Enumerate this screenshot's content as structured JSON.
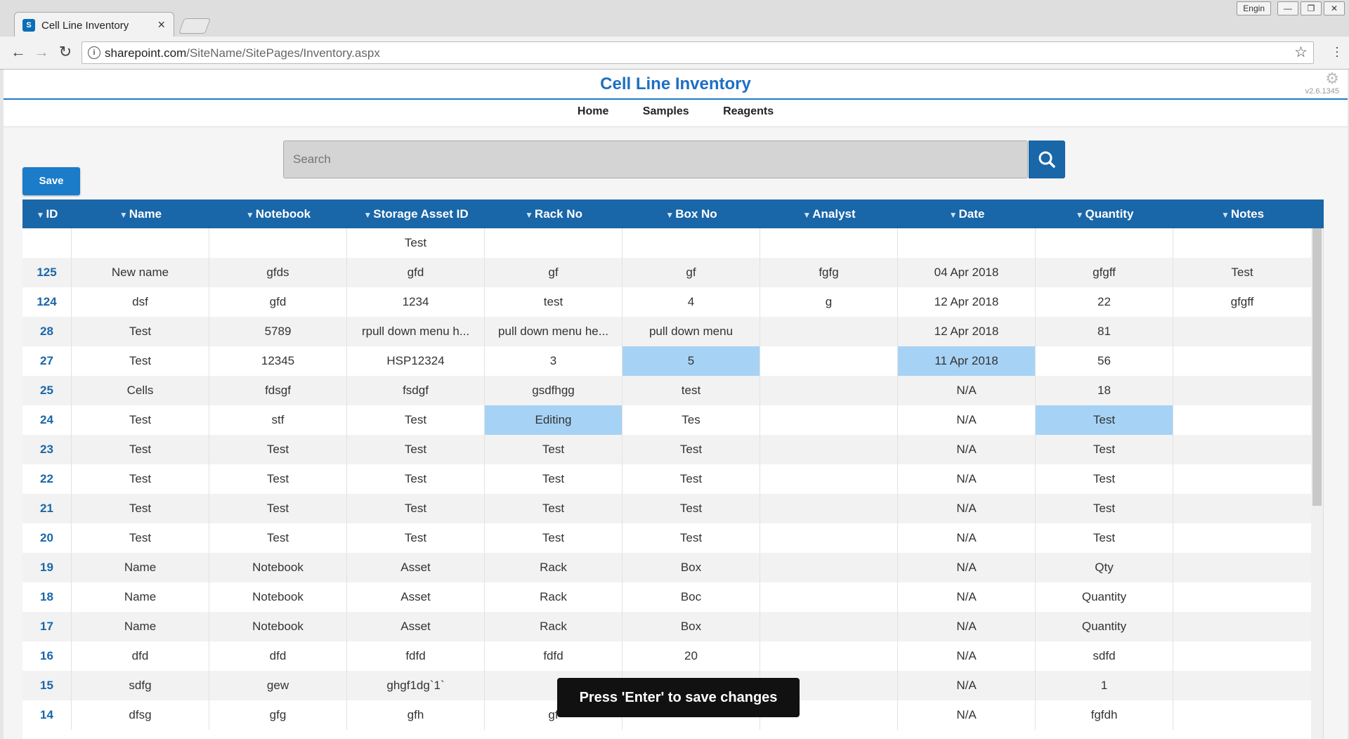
{
  "browser": {
    "tab_title": "Cell Line Inventory",
    "tab_favicon": "S",
    "tab_close": "×",
    "user_label": "Engin",
    "url_host": "sharepoint.com",
    "url_path": "/SiteName/SitePages/Inventory.aspx"
  },
  "app": {
    "title": "Cell Line Inventory",
    "version": "v2.6.1345",
    "nav": [
      "Home",
      "Samples",
      "Reagents"
    ],
    "search_placeholder": "Search",
    "save_label": "Save",
    "toast": "Press 'Enter' to save changes",
    "highlight_color": "#a6d3f5",
    "accent_color": "#1966a8"
  },
  "table": {
    "columns": [
      "ID",
      "Name",
      "Notebook",
      "Storage Asset ID",
      "Rack No",
      "Box No",
      "Analyst",
      "Date",
      "Quantity",
      "Notes"
    ],
    "rows": [
      [
        "",
        "",
        "",
        "Test",
        "",
        "",
        "",
        "",
        "",
        ""
      ],
      [
        "125",
        "New name",
        "gfds",
        "gfd",
        "gf",
        "gf",
        "fgfg",
        "04 Apr 2018",
        "gfgff",
        "Test"
      ],
      [
        "124",
        "dsf",
        "gfd",
        "1234",
        "test",
        "4",
        "g",
        "12 Apr 2018",
        "22",
        "gfgff"
      ],
      [
        "28",
        "Test",
        "5789",
        "rpull down menu h...",
        "pull down menu he...",
        "pull down menu",
        "",
        "12 Apr 2018",
        "81",
        ""
      ],
      [
        "27",
        "Test",
        "12345",
        "HSP12324",
        "3",
        "5",
        "",
        "11 Apr 2018",
        "56",
        ""
      ],
      [
        "25",
        "Cells",
        "fdsgf",
        "fsdgf",
        "gsdfhgg",
        "test",
        "",
        "N/A",
        "18",
        ""
      ],
      [
        "24",
        "Test",
        "stf",
        "Test",
        "Editing",
        "Tes",
        "",
        "N/A",
        "Test",
        ""
      ],
      [
        "23",
        "Test",
        "Test",
        "Test",
        "Test",
        "Test",
        "",
        "N/A",
        "Test",
        ""
      ],
      [
        "22",
        "Test",
        "Test",
        "Test",
        "Test",
        "Test",
        "",
        "N/A",
        "Test",
        ""
      ],
      [
        "21",
        "Test",
        "Test",
        "Test",
        "Test",
        "Test",
        "",
        "N/A",
        "Test",
        ""
      ],
      [
        "20",
        "Test",
        "Test",
        "Test",
        "Test",
        "Test",
        "",
        "N/A",
        "Test",
        ""
      ],
      [
        "19",
        "Name",
        "Notebook",
        "Asset",
        "Rack",
        "Box",
        "",
        "N/A",
        "Qty",
        ""
      ],
      [
        "18",
        "Name",
        "Notebook",
        "Asset",
        "Rack",
        "Boc",
        "",
        "N/A",
        "Quantity",
        ""
      ],
      [
        "17",
        "Name",
        "Notebook",
        "Asset",
        "Rack",
        "Box",
        "",
        "N/A",
        "Quantity",
        ""
      ],
      [
        "16",
        "dfd",
        "dfd",
        "fdfd",
        "fdfd",
        "20",
        "",
        "N/A",
        "sdfd",
        ""
      ],
      [
        "15",
        "sdfg",
        "gew",
        "ghgf1dg`1`",
        "",
        "",
        "",
        "N/A",
        "1",
        ""
      ],
      [
        "14",
        "dfsg",
        "gfg",
        "gfh",
        "gf",
        "",
        "",
        "N/A",
        "fgfdh",
        ""
      ]
    ],
    "highlighted_cells": [
      [
        4,
        5
      ],
      [
        4,
        7
      ],
      [
        6,
        4
      ],
      [
        6,
        8
      ]
    ]
  }
}
